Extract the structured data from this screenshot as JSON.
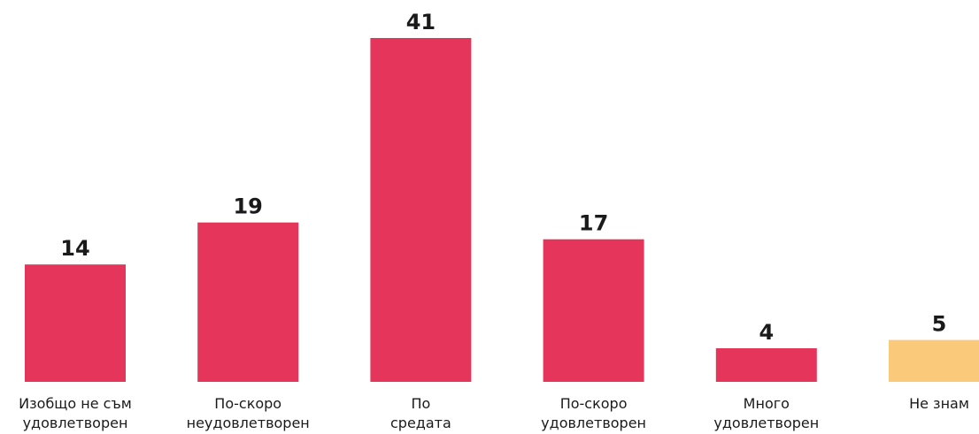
{
  "chart_data": {
    "type": "bar",
    "title": "",
    "xlabel": "",
    "ylabel": "",
    "categories": [
      [
        "Изобщо не съм",
        "удовлетворен"
      ],
      [
        "По-скоро",
        "неудовлетворен"
      ],
      [
        "По",
        "средата"
      ],
      [
        "По-скоро",
        "удовлетворен"
      ],
      [
        "Много",
        "удовлетворен"
      ],
      [
        "Не знам"
      ]
    ],
    "values": [
      14,
      19,
      41,
      17,
      4,
      5
    ],
    "colors": [
      "#e5355a",
      "#e5355a",
      "#e5355a",
      "#e5355a",
      "#e5355a",
      "#fbc97a"
    ],
    "ylim": [
      0,
      41
    ],
    "grid": false,
    "legend": "none"
  }
}
